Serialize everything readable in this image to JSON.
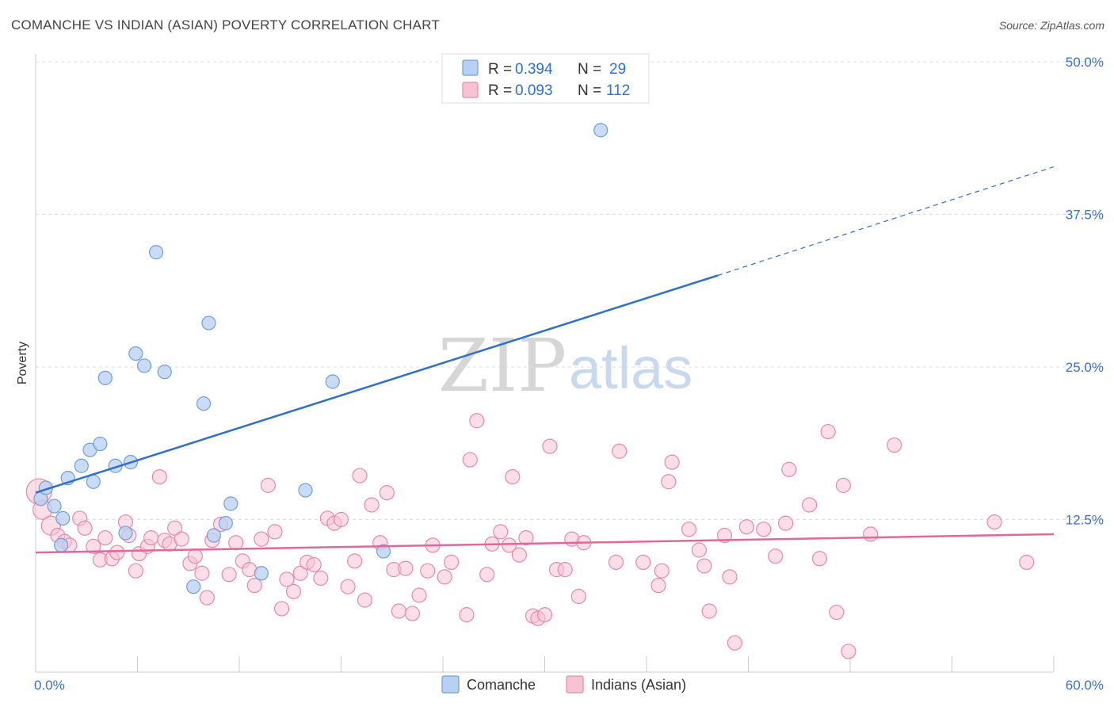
{
  "header": {
    "title": "COMANCHE VS INDIAN (ASIAN) POVERTY CORRELATION CHART",
    "source": "Source: ZipAtlas.com"
  },
  "watermark": {
    "part1": "ZIP",
    "part2": "atlas"
  },
  "colors": {
    "comanche_fill": "#b8d0f2",
    "comanche_stroke": "#6f9fdc",
    "comanche_line": "#2f6fcf",
    "indian_fill": "#f7c3d3",
    "indian_stroke": "#e88aa8",
    "indian_line": "#e2679a",
    "grid": "#dddddd",
    "axis_label": "#3c72c8"
  },
  "legend": {
    "r_label": "R =",
    "n_label": "N =",
    "rows": [
      {
        "r": "0.394",
        "n": "29"
      },
      {
        "r": "0.093",
        "n": "112"
      }
    ]
  },
  "chart_data": {
    "type": "scatter",
    "title": "COMANCHE VS INDIAN (ASIAN) POVERTY CORRELATION CHART",
    "xlabel": "",
    "ylabel": "Poverty",
    "xlim": [
      0,
      60
    ],
    "ylim": [
      0,
      50
    ],
    "x_tick_labels": [
      "0.0%",
      "60.0%"
    ],
    "y_ticks": [
      12.5,
      25,
      37.5,
      50
    ],
    "y_tick_labels": [
      "12.5%",
      "25.0%",
      "37.5%",
      "50.0%"
    ],
    "grid": "horizontal dashed",
    "legend_position": "top-center",
    "series": [
      {
        "name": "Comanche",
        "r": 0.394,
        "n": 29,
        "trend": {
          "x0": 0,
          "y0": 14.7,
          "x1": 40.2,
          "y1": 32.5,
          "dashed_to_x": 60,
          "dashed_to_y": 41.4
        },
        "points": [
          [
            0.3,
            14.2
          ],
          [
            0.6,
            15.1
          ],
          [
            1.1,
            13.6
          ],
          [
            1.5,
            10.4
          ],
          [
            1.6,
            12.6
          ],
          [
            1.9,
            15.9
          ],
          [
            2.7,
            16.9
          ],
          [
            3.4,
            15.6
          ],
          [
            3.2,
            18.2
          ],
          [
            3.8,
            18.7
          ],
          [
            4.1,
            24.1
          ],
          [
            4.7,
            16.9
          ],
          [
            5.3,
            11.4
          ],
          [
            5.6,
            17.2
          ],
          [
            5.9,
            26.1
          ],
          [
            6.4,
            25.1
          ],
          [
            7.1,
            34.4
          ],
          [
            7.6,
            24.6
          ],
          [
            9.3,
            7.0
          ],
          [
            9.9,
            22.0
          ],
          [
            10.2,
            28.6
          ],
          [
            10.5,
            11.2
          ],
          [
            11.2,
            12.2
          ],
          [
            11.5,
            13.8
          ],
          [
            13.3,
            8.1
          ],
          [
            15.9,
            14.9
          ],
          [
            17.5,
            23.8
          ],
          [
            20.5,
            9.9
          ],
          [
            33.3,
            44.4
          ]
        ]
      },
      {
        "name": "Indians (Asian)",
        "r": 0.093,
        "n": 112,
        "trend": {
          "x0": 0,
          "y0": 9.8,
          "x1": 60,
          "y1": 11.3
        },
        "points": [
          [
            0.2,
            14.8
          ],
          [
            0.4,
            13.3
          ],
          [
            0.9,
            12.0
          ],
          [
            1.3,
            11.2
          ],
          [
            1.7,
            10.7
          ],
          [
            2.0,
            10.4
          ],
          [
            2.6,
            12.6
          ],
          [
            2.9,
            11.8
          ],
          [
            3.4,
            10.3
          ],
          [
            3.8,
            9.2
          ],
          [
            4.1,
            11.0
          ],
          [
            4.5,
            9.3
          ],
          [
            4.8,
            9.8
          ],
          [
            5.3,
            12.3
          ],
          [
            5.5,
            11.2
          ],
          [
            5.9,
            8.3
          ],
          [
            6.1,
            9.7
          ],
          [
            6.6,
            10.3
          ],
          [
            6.8,
            11.0
          ],
          [
            7.3,
            16.0
          ],
          [
            7.6,
            10.8
          ],
          [
            7.9,
            10.5
          ],
          [
            8.2,
            11.8
          ],
          [
            8.6,
            10.9
          ],
          [
            9.1,
            8.9
          ],
          [
            9.4,
            9.5
          ],
          [
            9.8,
            8.1
          ],
          [
            10.1,
            6.1
          ],
          [
            10.4,
            10.8
          ],
          [
            10.9,
            12.1
          ],
          [
            11.4,
            8.0
          ],
          [
            11.8,
            10.6
          ],
          [
            12.2,
            9.1
          ],
          [
            12.6,
            8.4
          ],
          [
            12.9,
            7.1
          ],
          [
            13.3,
            10.9
          ],
          [
            13.7,
            15.3
          ],
          [
            14.1,
            11.5
          ],
          [
            14.5,
            5.2
          ],
          [
            14.8,
            7.6
          ],
          [
            15.2,
            6.6
          ],
          [
            15.6,
            8.1
          ],
          [
            16.0,
            9.0
          ],
          [
            16.4,
            8.8
          ],
          [
            16.8,
            7.7
          ],
          [
            17.2,
            12.6
          ],
          [
            17.6,
            12.2
          ],
          [
            18.0,
            12.5
          ],
          [
            18.4,
            7.0
          ],
          [
            18.8,
            9.1
          ],
          [
            19.1,
            16.1
          ],
          [
            19.4,
            5.9
          ],
          [
            19.8,
            13.7
          ],
          [
            20.3,
            10.6
          ],
          [
            20.7,
            14.7
          ],
          [
            21.1,
            8.4
          ],
          [
            21.4,
            5.0
          ],
          [
            21.8,
            8.5
          ],
          [
            22.2,
            4.8
          ],
          [
            22.6,
            6.3
          ],
          [
            23.1,
            8.3
          ],
          [
            23.4,
            10.4
          ],
          [
            24.1,
            7.8
          ],
          [
            24.5,
            9.0
          ],
          [
            25.4,
            4.7
          ],
          [
            25.6,
            17.4
          ],
          [
            26.0,
            20.6
          ],
          [
            26.6,
            8.0
          ],
          [
            26.9,
            10.5
          ],
          [
            27.4,
            11.5
          ],
          [
            27.9,
            10.4
          ],
          [
            28.1,
            16.0
          ],
          [
            28.5,
            9.6
          ],
          [
            28.9,
            11.0
          ],
          [
            29.3,
            4.6
          ],
          [
            29.6,
            4.4
          ],
          [
            30.0,
            4.7
          ],
          [
            30.3,
            18.5
          ],
          [
            30.7,
            8.4
          ],
          [
            31.2,
            8.4
          ],
          [
            31.6,
            10.9
          ],
          [
            32.0,
            6.2
          ],
          [
            32.3,
            10.6
          ],
          [
            34.2,
            9.0
          ],
          [
            34.4,
            18.1
          ],
          [
            35.8,
            9.0
          ],
          [
            36.7,
            7.1
          ],
          [
            36.9,
            8.3
          ],
          [
            37.3,
            15.6
          ],
          [
            37.5,
            17.2
          ],
          [
            38.5,
            11.7
          ],
          [
            39.1,
            10.0
          ],
          [
            39.4,
            8.7
          ],
          [
            39.7,
            5.0
          ],
          [
            40.6,
            11.2
          ],
          [
            40.9,
            7.8
          ],
          [
            41.2,
            2.4
          ],
          [
            41.9,
            11.9
          ],
          [
            42.9,
            11.7
          ],
          [
            43.6,
            9.5
          ],
          [
            44.2,
            12.2
          ],
          [
            44.4,
            16.6
          ],
          [
            45.6,
            13.7
          ],
          [
            46.2,
            9.3
          ],
          [
            46.7,
            19.7
          ],
          [
            47.2,
            4.9
          ],
          [
            47.6,
            15.3
          ],
          [
            47.9,
            1.7
          ],
          [
            49.2,
            11.3
          ],
          [
            50.6,
            18.6
          ],
          [
            56.5,
            12.3
          ],
          [
            58.4,
            9.0
          ]
        ]
      }
    ]
  },
  "bottom_legend": {
    "items": [
      {
        "label": "Comanche"
      },
      {
        "label": "Indians (Asian)"
      }
    ]
  }
}
